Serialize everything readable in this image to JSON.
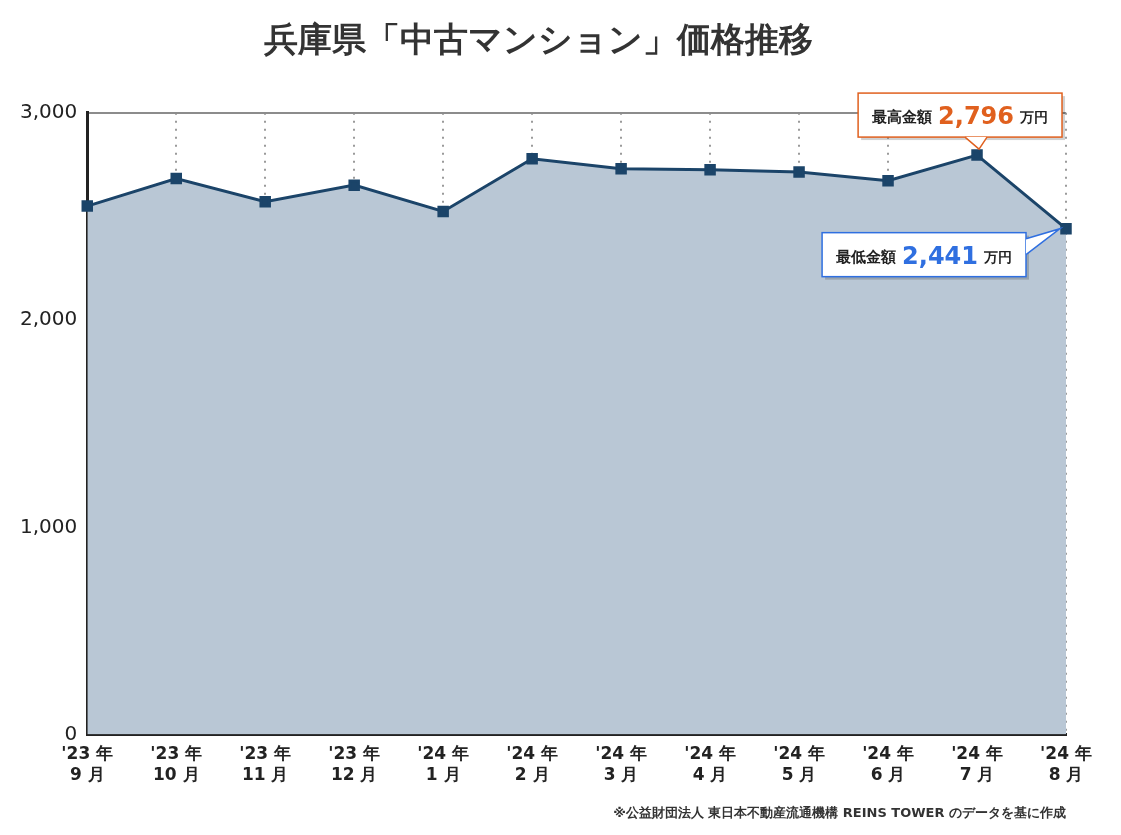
{
  "chart_data": {
    "type": "area",
    "title": "兵庫県「中古マンション」価格推移",
    "subtitle": "※公益財団法人 東日本不動産流通機構 REINS TOWER のデータを基に作成",
    "categories": [
      [
        "'23 年",
        "9 月"
      ],
      [
        "'23 年",
        "10 月"
      ],
      [
        "'23 年",
        "11 月"
      ],
      [
        "'23 年",
        "12 月"
      ],
      [
        "'24 年",
        "1 月"
      ],
      [
        "'24 年",
        "2 月"
      ],
      [
        "'24 年",
        "3 月"
      ],
      [
        "'24 年",
        "4 月"
      ],
      [
        "'24 年",
        "5 月"
      ],
      [
        "'24 年",
        "6 月"
      ],
      [
        "'24 年",
        "7 月"
      ],
      [
        "'24 年",
        "8 月"
      ]
    ],
    "values": [
      2550,
      2683,
      2571,
      2651,
      2524,
      2778,
      2730,
      2725,
      2714,
      2672,
      2796,
      2441
    ],
    "color": "#1b4469",
    "marker": "square",
    "ylim": [
      0,
      3000
    ],
    "yticks": [
      0,
      {
        "value": 1000,
        "label": "1,000"
      },
      {
        "value": 2000,
        "label": "2,000"
      },
      {
        "value": 3000,
        "label": "3,000"
      }
    ],
    "grid": true,
    "annotations": [
      {
        "label": "最高金額",
        "value": 2796,
        "value_label": "2,796",
        "unit": "万円",
        "color": "#e0601e"
      },
      {
        "label": "最低金額",
        "value": 2441,
        "value_label": "2,441",
        "unit": "万円",
        "color": "#2f6fe0"
      }
    ]
  }
}
